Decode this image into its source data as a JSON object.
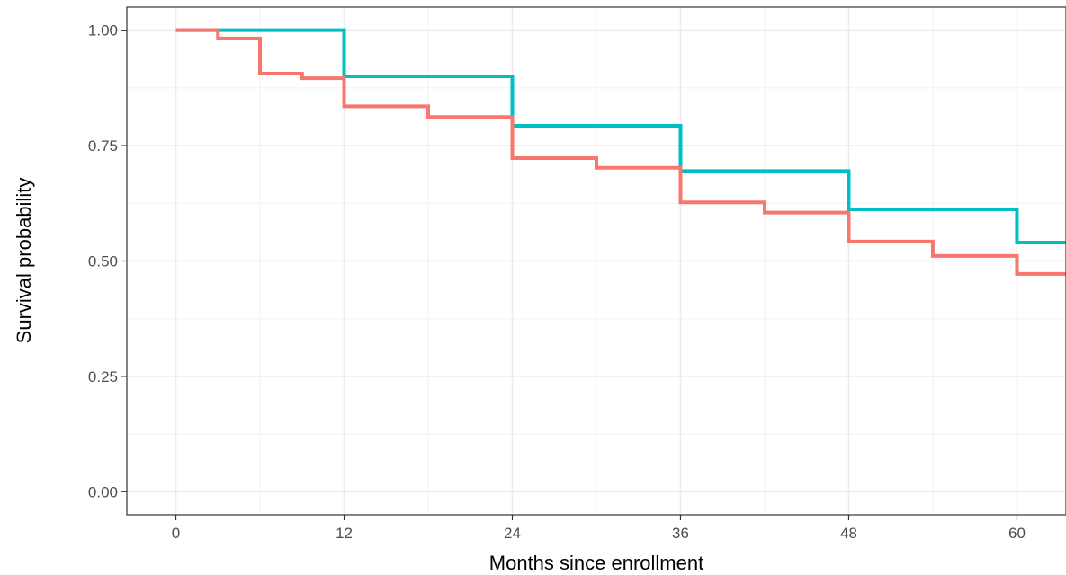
{
  "chart_data": {
    "type": "line",
    "step": true,
    "title": "",
    "xlabel": "Months since enrollment",
    "ylabel": "Survival probability",
    "xlim": [
      -3.5,
      63.5
    ],
    "ylim": [
      -0.05,
      1.05
    ],
    "x_ticks": [
      0,
      12,
      24,
      36,
      48,
      60
    ],
    "x_tick_labels": [
      "0",
      "12",
      "24",
      "36",
      "48",
      "60"
    ],
    "y_ticks": [
      0,
      0.25,
      0.5,
      0.75,
      1.0
    ],
    "y_tick_labels": [
      "0.00",
      "0.25",
      "0.50",
      "0.75",
      "1.00"
    ],
    "grid": true,
    "legend": "none",
    "series": [
      {
        "color": "#00BFC4",
        "x": [
          0,
          12,
          24,
          36,
          48,
          60,
          63.5
        ],
        "y": [
          1.0,
          0.9,
          0.793,
          0.695,
          0.612,
          0.54,
          0.54
        ]
      },
      {
        "color": "#F8766D",
        "x": [
          0,
          3,
          6,
          9,
          12,
          18,
          24,
          30,
          36,
          42,
          48,
          54,
          60,
          63.5
        ],
        "y": [
          1.0,
          0.982,
          0.906,
          0.896,
          0.835,
          0.812,
          0.723,
          0.702,
          0.627,
          0.605,
          0.542,
          0.511,
          0.472,
          0.472
        ]
      }
    ]
  }
}
